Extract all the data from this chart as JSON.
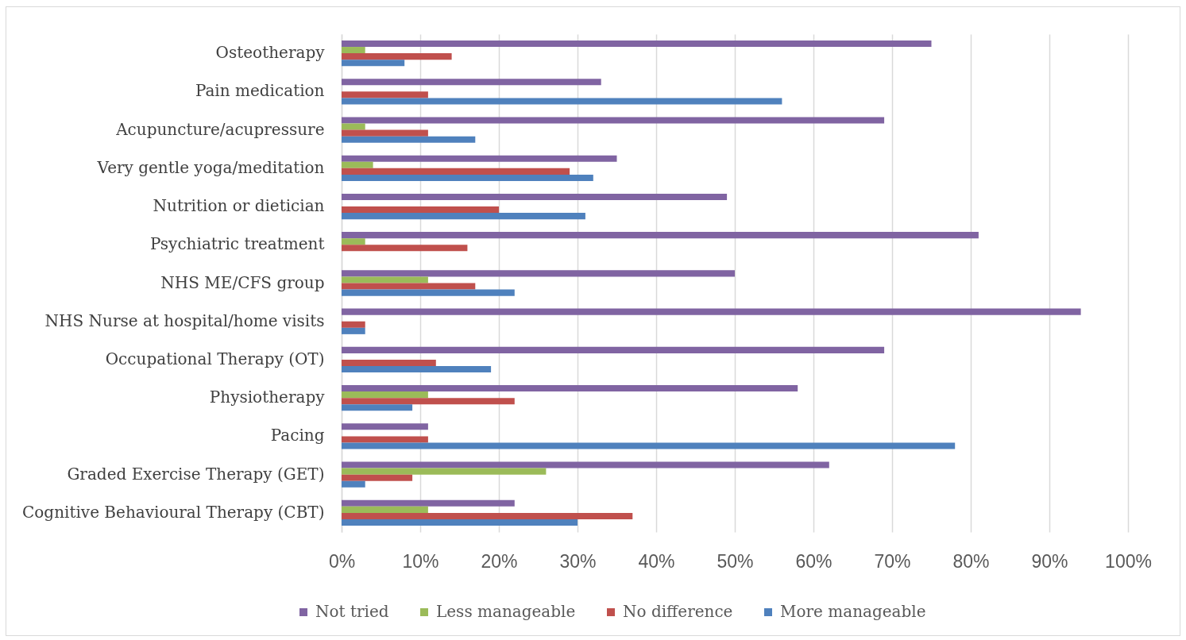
{
  "chart_data": {
    "type": "bar",
    "orientation": "horizontal",
    "categories": [
      "Osteotherapy",
      "Pain medication",
      "Acupuncture/acupressure",
      "Very gentle yoga/meditation",
      "Nutrition or dietician",
      "Psychiatric treatment",
      "NHS ME/CFS group",
      "NHS Nurse at hospital/home visits",
      "Occupational Therapy (OT)",
      "Physiotherapy",
      "Pacing",
      "Graded Exercise Therapy (GET)",
      "Cognitive Behavioural Therapy (CBT)"
    ],
    "series": [
      {
        "name": "Not tried",
        "color": "#8064a2",
        "values": [
          75,
          33,
          69,
          35,
          49,
          81,
          50,
          94,
          69,
          58,
          11,
          62,
          22
        ]
      },
      {
        "name": "Less manageable",
        "color": "#9bbb59",
        "values": [
          3,
          null,
          3,
          4,
          null,
          3,
          11,
          null,
          null,
          11,
          null,
          26,
          11
        ]
      },
      {
        "name": "No difference",
        "color": "#c0504d",
        "values": [
          14,
          11,
          11,
          29,
          20,
          16,
          17,
          3,
          12,
          22,
          11,
          9,
          37
        ]
      },
      {
        "name": "More manageable",
        "color": "#4f81bd",
        "values": [
          8,
          56,
          17,
          32,
          31,
          null,
          22,
          3,
          19,
          9,
          78,
          3,
          30
        ]
      }
    ],
    "xlim": [
      0,
      100
    ],
    "xticks": [
      {
        "value": 0,
        "label": "0%"
      },
      {
        "value": 10,
        "label": "10%"
      },
      {
        "value": 20,
        "label": "20%"
      },
      {
        "value": 30,
        "label": "30%"
      },
      {
        "value": 40,
        "label": "40%"
      },
      {
        "value": 50,
        "label": "50%"
      },
      {
        "value": 60,
        "label": "60%"
      },
      {
        "value": 70,
        "label": "70%"
      },
      {
        "value": 80,
        "label": "80%"
      },
      {
        "value": 90,
        "label": "90%"
      },
      {
        "value": 100,
        "label": "100%"
      }
    ],
    "grid": "x",
    "legend": "bottom"
  }
}
